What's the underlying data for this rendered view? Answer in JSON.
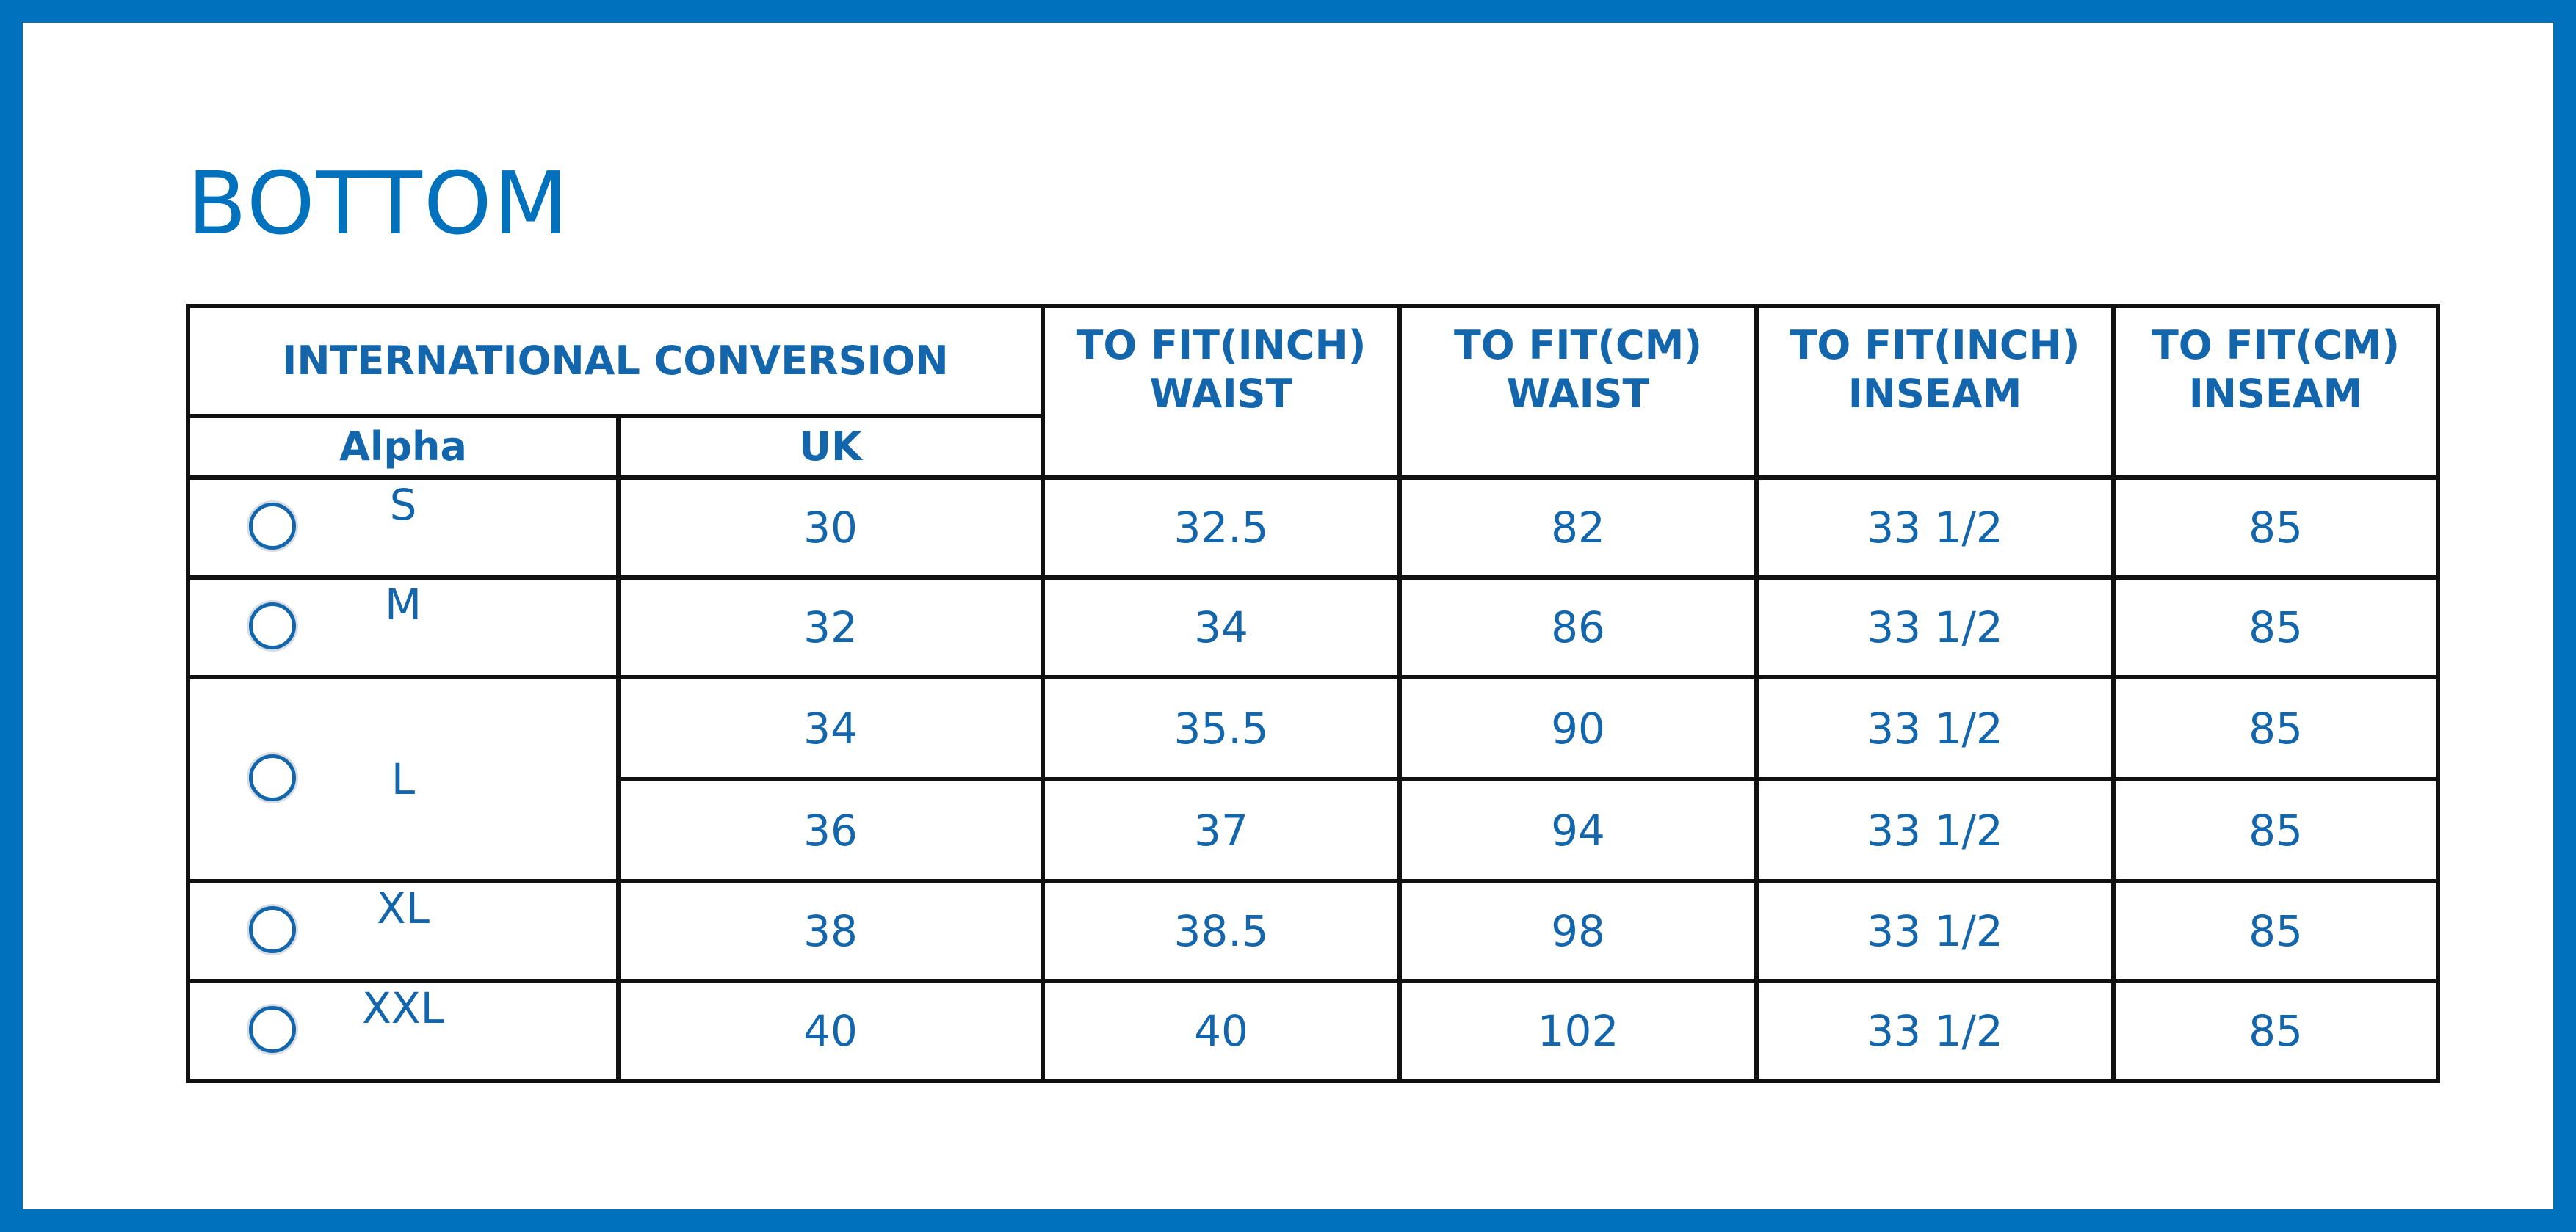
{
  "title": "BOTTOM",
  "header": {
    "group_label": "INTERNATIONAL CONVERSION",
    "alpha_label": "Alpha",
    "uk_label": "UK",
    "columns": [
      {
        "line1": "TO FIT(INCH)",
        "line2": "WAIST"
      },
      {
        "line1": "TO FIT(CM)",
        "line2": "WAIST"
      },
      {
        "line1": "TO FIT(INCH)",
        "line2": "INSEAM"
      },
      {
        "line1": "TO FIT(CM)",
        "line2": "INSEAM"
      }
    ]
  },
  "sizes": [
    {
      "alpha": "S",
      "rows": [
        {
          "uk": "30",
          "waist_in": "32.5",
          "waist_cm": "82",
          "inseam_in": "33 1/2",
          "inseam_cm": "85"
        }
      ]
    },
    {
      "alpha": "M",
      "rows": [
        {
          "uk": "32",
          "waist_in": "34",
          "waist_cm": "86",
          "inseam_in": "33 1/2",
          "inseam_cm": "85"
        }
      ]
    },
    {
      "alpha": "L",
      "rows": [
        {
          "uk": "34",
          "waist_in": "35.5",
          "waist_cm": "90",
          "inseam_in": "33 1/2",
          "inseam_cm": "85"
        },
        {
          "uk": "36",
          "waist_in": "37",
          "waist_cm": "94",
          "inseam_in": "33 1/2",
          "inseam_cm": "85"
        }
      ]
    },
    {
      "alpha": "XL",
      "rows": [
        {
          "uk": "38",
          "waist_in": "38.5",
          "waist_cm": "98",
          "inseam_in": "33 1/2",
          "inseam_cm": "85"
        }
      ]
    },
    {
      "alpha": "XXL",
      "rows": [
        {
          "uk": "40",
          "waist_in": "40",
          "waist_cm": "102",
          "inseam_in": "33 1/2",
          "inseam_cm": "85"
        }
      ]
    }
  ],
  "colors": {
    "accent": "#0071BC",
    "text": "#1466AC",
    "grid": "#111111"
  }
}
